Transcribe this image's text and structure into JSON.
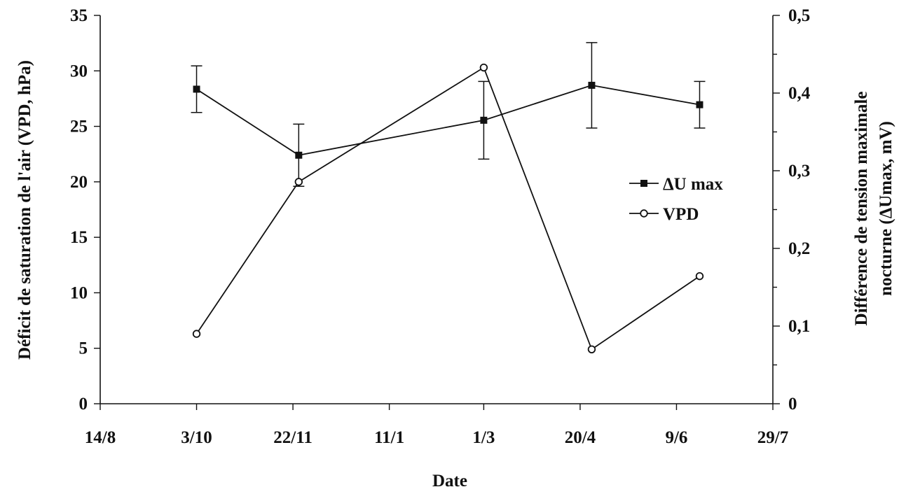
{
  "chart_data": {
    "type": "line",
    "xlabel": "Date",
    "ylabel_left": "Déficit de saturation de l'air (VPD, hPa)",
    "ylabel_right_line1": "Différence de tension maximale",
    "ylabel_right_line2": "nocturne (ΔUmax, mV)",
    "x_tick_labels": [
      "14/8",
      "3/10",
      "22/11",
      "11/1",
      "1/3",
      "20/4",
      "9/6",
      "29/7"
    ],
    "x_tick_days": [
      0,
      50,
      100,
      150,
      199,
      249,
      299,
      349
    ],
    "y_left_ticks": [
      "0",
      "5",
      "10",
      "15",
      "20",
      "25",
      "30",
      "35"
    ],
    "y_left_lim": [
      0,
      35
    ],
    "y_right_ticks": [
      "0",
      "0,1",
      "0,2",
      "0,3",
      "0,4",
      "0,5"
    ],
    "y_right_lim": [
      0,
      0.5
    ],
    "series": [
      {
        "name": "ΔU max",
        "axis": "right",
        "marker": "filled-square",
        "x": [
          "3/10",
          "25/11",
          "1/3",
          "26/4",
          "20/6"
        ],
        "x_days": [
          50,
          103,
          199,
          255,
          311
        ],
        "values": [
          0.405,
          0.32,
          0.365,
          0.41,
          0.385
        ],
        "error": [
          0.03,
          0.04,
          0.05,
          0.055,
          0.03
        ]
      },
      {
        "name": "VPD",
        "axis": "left",
        "marker": "open-circle",
        "x": [
          "3/10",
          "25/11",
          "1/3",
          "26/4",
          "20/6"
        ],
        "x_days": [
          50,
          103,
          199,
          255,
          311
        ],
        "values": [
          6.3,
          20.0,
          30.3,
          4.9,
          11.5
        ]
      }
    ],
    "legend_position": "right-center",
    "grid": false
  }
}
